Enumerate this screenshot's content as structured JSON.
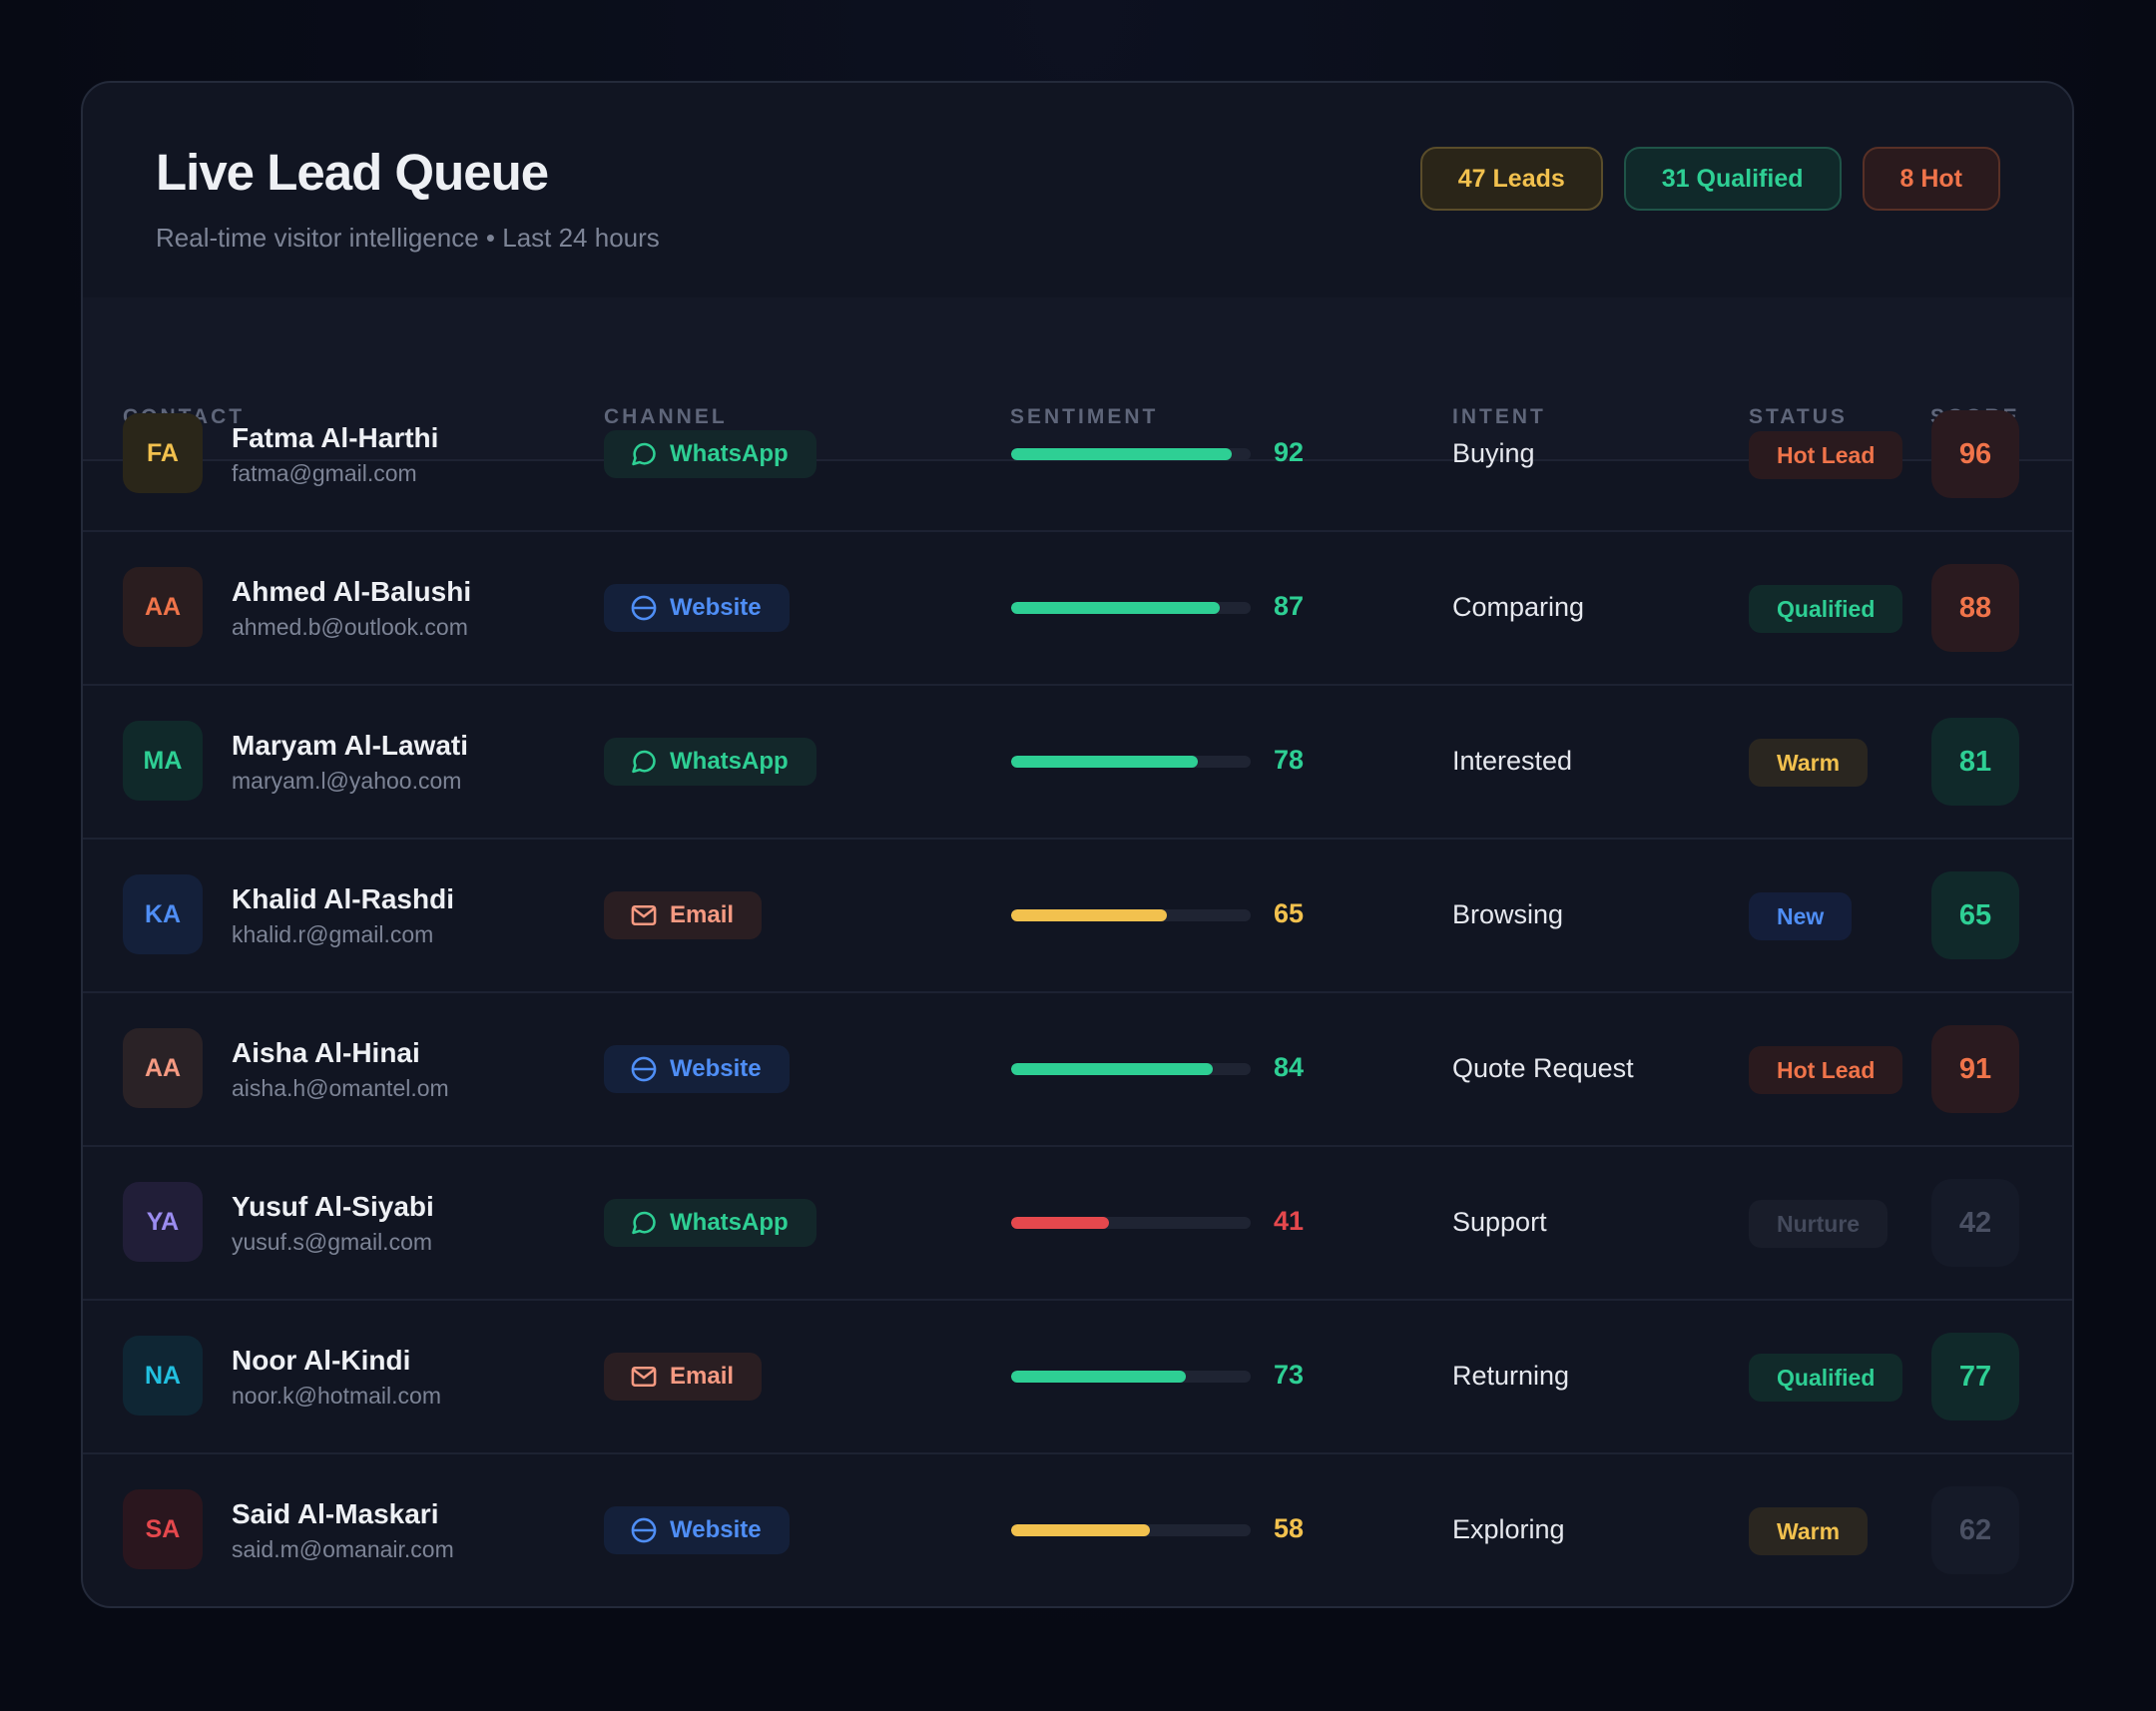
{
  "header": {
    "title": "Live Lead Queue",
    "subtitle": "Real-time visitor intelligence • Last 24 hours",
    "pills": {
      "leads": "47 Leads",
      "qualified": "31 Qualified",
      "hot": "8 Hot"
    }
  },
  "columns": {
    "contact": "CONTACT",
    "channel": "CHANNEL",
    "sentiment": "SENTIMENT",
    "intent": "INTENT",
    "status": "STATUS",
    "score": "SCORE"
  },
  "colors": {
    "green": "#2ecf94",
    "yellow": "#f2c14e",
    "red": "#e5484d",
    "orange": "#f0744a",
    "blue": "#4f8ef5"
  },
  "leads": [
    {
      "initials": "FA",
      "name": "Fatma Al-Harthi",
      "email": "fatma@gmail.com",
      "channel": "WhatsApp",
      "channel_icon": "whatsapp-icon",
      "sentiment": 92,
      "intent": "Buying",
      "status": "Hot Lead",
      "score": 96
    },
    {
      "initials": "AA",
      "name": "Ahmed Al-Balushi",
      "email": "ahmed.b@outlook.com",
      "channel": "Website",
      "channel_icon": "globe-icon",
      "sentiment": 87,
      "intent": "Comparing",
      "status": "Qualified",
      "score": 88
    },
    {
      "initials": "MA",
      "name": "Maryam Al-Lawati",
      "email": "maryam.l@yahoo.com",
      "channel": "WhatsApp",
      "channel_icon": "whatsapp-icon",
      "sentiment": 78,
      "intent": "Interested",
      "status": "Warm",
      "score": 81
    },
    {
      "initials": "KA",
      "name": "Khalid Al-Rashdi",
      "email": "khalid.r@gmail.com",
      "channel": "Email",
      "channel_icon": "mail-icon",
      "sentiment": 65,
      "intent": "Browsing",
      "status": "New",
      "score": 65
    },
    {
      "initials": "AA",
      "name": "Aisha Al-Hinai",
      "email": "aisha.h@omantel.om",
      "channel": "Website",
      "channel_icon": "globe-icon",
      "sentiment": 84,
      "intent": "Quote Request",
      "status": "Hot Lead",
      "score": 91
    },
    {
      "initials": "YA",
      "name": "Yusuf Al-Siyabi",
      "email": "yusuf.s@gmail.com",
      "channel": "WhatsApp",
      "channel_icon": "whatsapp-icon",
      "sentiment": 41,
      "intent": "Support",
      "status": "Nurture",
      "score": 42
    },
    {
      "initials": "NA",
      "name": "Noor Al-Kindi",
      "email": "noor.k@hotmail.com",
      "channel": "Email",
      "channel_icon": "mail-icon",
      "sentiment": 73,
      "intent": "Returning",
      "status": "Qualified",
      "score": 77
    },
    {
      "initials": "SA",
      "name": "Said Al-Maskari",
      "email": "said.m@omanair.com",
      "channel": "Website",
      "channel_icon": "globe-icon",
      "sentiment": 58,
      "intent": "Exploring",
      "status": "Warm",
      "score": 62
    }
  ]
}
